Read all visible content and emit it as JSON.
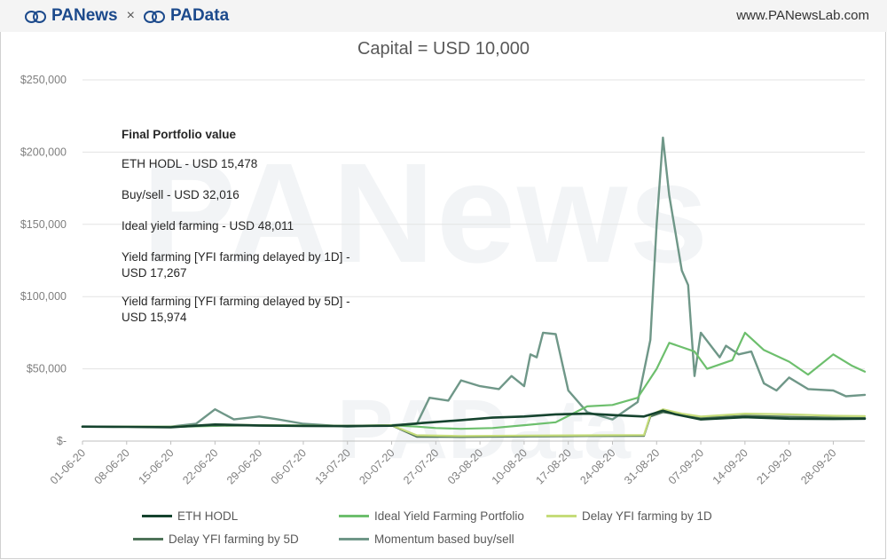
{
  "header": {
    "brand_left": "PANews",
    "brand_cross": "×",
    "brand_right": "PAData",
    "site": "www.PANewsLab.com"
  },
  "watermark": {
    "main": "PANews",
    "secondary": "PAData"
  },
  "chart_data": {
    "type": "line",
    "title": "Capital = USD 10,000",
    "xlabel": "",
    "ylabel": "",
    "ylim": [
      0,
      250000
    ],
    "yticks": [
      "$-",
      "$50,000",
      "$100,000",
      "$150,000",
      "$200,000",
      "$250,000"
    ],
    "ytick_values": [
      0,
      50000,
      100000,
      150000,
      200000,
      250000
    ],
    "xlim": [
      "01-06-20",
      "03-10-20"
    ],
    "xticks": [
      "01-06-20",
      "08-06-20",
      "15-06-20",
      "22-06-20",
      "29-06-20",
      "06-07-20",
      "13-07-20",
      "20-07-20",
      "27-07-20",
      "03-08-20",
      "10-08-20",
      "17-08-20",
      "24-08-20",
      "31-08-20",
      "07-09-20",
      "14-09-20",
      "21-09-20",
      "28-09-20"
    ],
    "grid": true,
    "legend_position": "bottom",
    "annotations": {
      "heading": "Final Portfolio value",
      "lines": [
        "ETH HODL - USD 15,478",
        "Buy/sell - USD 32,016",
        "Ideal yield farming - USD 48,011",
        "Yield farming [YFI farming delayed by 1D] - USD 17,267",
        "Yield farming [YFI farming delayed by 5D] - USD 15,974"
      ]
    },
    "series": [
      {
        "name": "ETH HODL",
        "color": "#15432e",
        "width": 2.6,
        "points": [
          [
            "01-06-20",
            10000
          ],
          [
            "08-06-20",
            9800
          ],
          [
            "15-06-20",
            9600
          ],
          [
            "22-06-20",
            11500
          ],
          [
            "29-06-20",
            10800
          ],
          [
            "06-07-20",
            10500
          ],
          [
            "13-07-20",
            10400
          ],
          [
            "20-07-20",
            10600
          ],
          [
            "25-07-20",
            12500
          ],
          [
            "31-07-20",
            14500
          ],
          [
            "05-08-20",
            16200
          ],
          [
            "10-08-20",
            17000
          ],
          [
            "15-08-20",
            18500
          ],
          [
            "20-08-20",
            19000
          ],
          [
            "24-08-20",
            18000
          ],
          [
            "29-08-20",
            17000
          ],
          [
            "01-09-20",
            21000
          ],
          [
            "03-09-20",
            18500
          ],
          [
            "07-09-20",
            15000
          ],
          [
            "14-09-20",
            16500
          ],
          [
            "21-09-20",
            15500
          ],
          [
            "28-09-20",
            15300
          ],
          [
            "03-10-20",
            15478
          ]
        ]
      },
      {
        "name": "Ideal Yield Farming Portfolio",
        "color": "#6dbf6d",
        "width": 2.2,
        "points": [
          [
            "01-06-20",
            10000
          ],
          [
            "08-06-20",
            10000
          ],
          [
            "15-06-20",
            9800
          ],
          [
            "22-06-20",
            10500
          ],
          [
            "29-06-20",
            11000
          ],
          [
            "06-07-20",
            10800
          ],
          [
            "13-07-20",
            10500
          ],
          [
            "20-07-20",
            11000
          ],
          [
            "24-07-20",
            10000
          ],
          [
            "27-07-20",
            9000
          ],
          [
            "31-07-20",
            8500
          ],
          [
            "05-08-20",
            9000
          ],
          [
            "10-08-20",
            11000
          ],
          [
            "15-08-20",
            13000
          ],
          [
            "20-08-20",
            24000
          ],
          [
            "24-08-20",
            25000
          ],
          [
            "28-08-20",
            30000
          ],
          [
            "31-08-20",
            50000
          ],
          [
            "02-09-20",
            68000
          ],
          [
            "06-09-20",
            62000
          ],
          [
            "08-09-20",
            50000
          ],
          [
            "12-09-20",
            56000
          ],
          [
            "14-09-20",
            75000
          ],
          [
            "17-09-20",
            63000
          ],
          [
            "21-09-20",
            55000
          ],
          [
            "24-09-20",
            46000
          ],
          [
            "28-09-20",
            60000
          ],
          [
            "01-10-20",
            52000
          ],
          [
            "03-10-20",
            48011
          ]
        ]
      },
      {
        "name": "Delay YFI farming by 1D",
        "color": "#c5dc7a",
        "width": 2.2,
        "points": [
          [
            "01-06-20",
            10000
          ],
          [
            "08-06-20",
            9900
          ],
          [
            "15-06-20",
            9800
          ],
          [
            "22-06-20",
            11500
          ],
          [
            "29-06-20",
            11000
          ],
          [
            "06-07-20",
            10700
          ],
          [
            "13-07-20",
            10500
          ],
          [
            "20-07-20",
            11000
          ],
          [
            "24-07-20",
            4000
          ],
          [
            "31-07-20",
            3500
          ],
          [
            "10-08-20",
            3800
          ],
          [
            "20-08-20",
            4000
          ],
          [
            "29-08-20",
            4200
          ],
          [
            "30-08-20",
            18000
          ],
          [
            "01-09-20",
            22000
          ],
          [
            "04-09-20",
            19000
          ],
          [
            "07-09-20",
            17000
          ],
          [
            "14-09-20",
            19000
          ],
          [
            "21-09-20",
            18500
          ],
          [
            "28-09-20",
            17500
          ],
          [
            "03-10-20",
            17267
          ]
        ]
      },
      {
        "name": "Delay YFI farming by 5D",
        "color": "#4e7358",
        "width": 2.2,
        "points": [
          [
            "01-06-20",
            10000
          ],
          [
            "08-06-20",
            9900
          ],
          [
            "15-06-20",
            9700
          ],
          [
            "22-06-20",
            11000
          ],
          [
            "29-06-20",
            10700
          ],
          [
            "06-07-20",
            10500
          ],
          [
            "13-07-20",
            10400
          ],
          [
            "20-07-20",
            10900
          ],
          [
            "24-07-20",
            3000
          ],
          [
            "31-07-20",
            2800
          ],
          [
            "10-08-20",
            3200
          ],
          [
            "20-08-20",
            3500
          ],
          [
            "29-08-20",
            3600
          ],
          [
            "30-08-20",
            17000
          ],
          [
            "01-09-20",
            20000
          ],
          [
            "04-09-20",
            18000
          ],
          [
            "07-09-20",
            16000
          ],
          [
            "14-09-20",
            17500
          ],
          [
            "21-09-20",
            16800
          ],
          [
            "28-09-20",
            16200
          ],
          [
            "03-10-20",
            15974
          ]
        ]
      },
      {
        "name": "Momentum based buy/sell",
        "color": "#6f9788",
        "width": 2.4,
        "points": [
          [
            "01-06-20",
            10000
          ],
          [
            "08-06-20",
            10000
          ],
          [
            "15-06-20",
            10000
          ],
          [
            "19-06-20",
            12000
          ],
          [
            "22-06-20",
            22000
          ],
          [
            "25-06-20",
            15000
          ],
          [
            "29-06-20",
            17000
          ],
          [
            "02-07-20",
            15000
          ],
          [
            "06-07-20",
            12000
          ],
          [
            "13-07-20",
            10000
          ],
          [
            "20-07-20",
            11000
          ],
          [
            "24-07-20",
            12000
          ],
          [
            "26-07-20",
            30000
          ],
          [
            "29-07-20",
            28000
          ],
          [
            "31-07-20",
            42000
          ],
          [
            "03-08-20",
            38000
          ],
          [
            "06-08-20",
            36000
          ],
          [
            "08-08-20",
            45000
          ],
          [
            "10-08-20",
            38000
          ],
          [
            "11-08-20",
            60000
          ],
          [
            "12-08-20",
            58000
          ],
          [
            "13-08-20",
            75000
          ],
          [
            "15-08-20",
            74000
          ],
          [
            "17-08-20",
            35000
          ],
          [
            "20-08-20",
            20000
          ],
          [
            "24-08-20",
            15000
          ],
          [
            "28-08-20",
            27000
          ],
          [
            "30-08-20",
            70000
          ],
          [
            "31-08-20",
            150000
          ],
          [
            "01-09-20",
            210000
          ],
          [
            "02-09-20",
            170000
          ],
          [
            "04-09-20",
            118000
          ],
          [
            "05-09-20",
            108000
          ],
          [
            "06-09-20",
            45000
          ],
          [
            "07-09-20",
            75000
          ],
          [
            "10-09-20",
            58000
          ],
          [
            "11-09-20",
            66000
          ],
          [
            "13-09-20",
            60000
          ],
          [
            "15-09-20",
            62000
          ],
          [
            "17-09-20",
            40000
          ],
          [
            "19-09-20",
            35000
          ],
          [
            "21-09-20",
            44000
          ],
          [
            "24-09-20",
            36000
          ],
          [
            "28-09-20",
            35000
          ],
          [
            "30-09-20",
            31000
          ],
          [
            "03-10-20",
            32016
          ]
        ]
      }
    ]
  }
}
